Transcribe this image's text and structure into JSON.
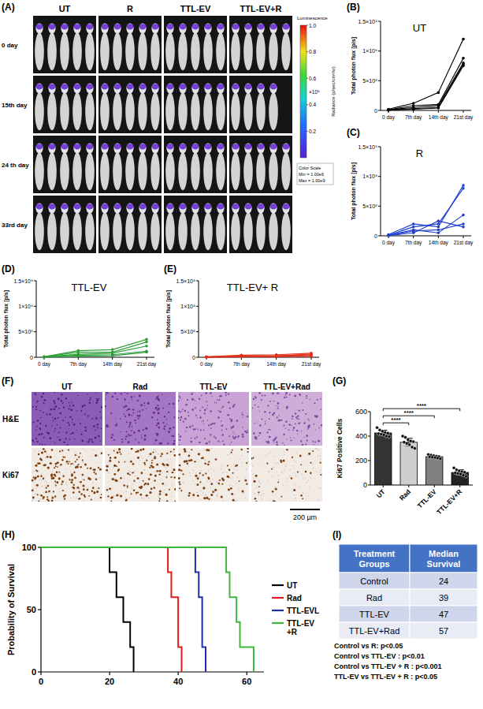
{
  "imaging": {
    "label": "(A)",
    "columns": [
      "UT",
      "R",
      "TTL-EV",
      "TTL-EV+R"
    ],
    "rows": [
      "0 day",
      "15th day",
      "24 th day",
      "33rd day"
    ],
    "mouse_counts": [
      [
        5,
        5,
        5,
        5
      ],
      [
        5,
        5,
        5,
        4
      ],
      [
        5,
        5,
        5,
        5
      ],
      [
        5,
        5,
        5,
        5
      ]
    ],
    "colorbar": {
      "title": "Luminescence",
      "range": [
        0,
        1
      ],
      "ticks": [
        0.2,
        0.4,
        0.6,
        0.8,
        {
          "value": 1,
          "label": "1.0"
        }
      ],
      "exponent": "×10⁹",
      "label": "Radiance (p/sec/cm²/sr)",
      "note": [
        "Color Scale",
        "Min = 1.00e6",
        "Max = 1.00e9"
      ]
    }
  },
  "histology": {
    "label": "(F)",
    "columns": [
      "UT",
      "Rad",
      "TTL-EV",
      "TTL-EV+Rad"
    ],
    "rows": [
      "H&E",
      "Ki67"
    ],
    "scale_bar": "200 µm"
  },
  "chart_data": [
    {
      "type": "line",
      "label": "(B)",
      "title": "UT",
      "y_label": "Total photon flux [p/s]",
      "categories": [
        "0 day",
        "7th day",
        "14th day",
        "21st day"
      ],
      "ylim": [
        0,
        1500000000
      ],
      "yticks": [
        0,
        {
          "value": 500000000,
          "label": "5×10⁸"
        },
        {
          "value": 1000000000,
          "label": "1×10⁹"
        },
        {
          "value": 1500000000,
          "label": "1.5×10⁹"
        }
      ],
      "marker": "circle",
      "series": [
        {
          "color": "#000000",
          "values": [
            20000000,
            120000000,
            300000000,
            1200000000
          ]
        },
        {
          "color": "#000000",
          "values": [
            10000000,
            80000000,
            100000000,
            880000000
          ]
        },
        {
          "color": "#000000",
          "values": [
            10000000,
            50000000,
            80000000,
            800000000
          ]
        },
        {
          "color": "#000000",
          "values": [
            5000000,
            30000000,
            50000000,
            780000000
          ]
        },
        {
          "color": "#000000",
          "values": [
            5000000,
            20000000,
            40000000,
            750000000
          ]
        }
      ]
    },
    {
      "type": "line",
      "label": "(C)",
      "title": "R",
      "y_label": "Total photon flux [p/s]",
      "categories": [
        "0 day",
        "7th day",
        "14th day",
        "21st day"
      ],
      "ylim": [
        0,
        1500000000
      ],
      "yticks": [
        0,
        {
          "value": 500000000,
          "label": "5×10⁸"
        },
        {
          "value": 1000000000,
          "label": "1×10⁹"
        },
        {
          "value": 1500000000,
          "label": "1.5×10⁹"
        }
      ],
      "marker": "circle",
      "series": [
        {
          "color": "#1f3fd1",
          "values": [
            20000000,
            200000000,
            150000000,
            850000000
          ]
        },
        {
          "color": "#1f3fd1",
          "values": [
            10000000,
            150000000,
            200000000,
            800000000
          ]
        },
        {
          "color": "#1f3fd1",
          "values": [
            10000000,
            100000000,
            50000000,
            350000000
          ]
        },
        {
          "color": "#1f3fd1",
          "values": [
            5000000,
            80000000,
            100000000,
            200000000
          ]
        },
        {
          "color": "#1f3fd1",
          "values": [
            5000000,
            50000000,
            250000000,
            150000000
          ]
        }
      ]
    },
    {
      "type": "line",
      "label": "(D)",
      "title": "TTL-EV",
      "y_label": "Total photon flux [p/s]",
      "categories": [
        "0 day",
        "7th day",
        "14th day",
        "21st day"
      ],
      "ylim": [
        0,
        1500000000
      ],
      "yticks": [
        0,
        {
          "value": 500000000,
          "label": "5×10⁸"
        },
        {
          "value": 1000000000,
          "label": "1×10⁹"
        },
        {
          "value": 1500000000,
          "label": "1.5×10⁹"
        }
      ],
      "marker": "circle",
      "series": [
        {
          "color": "#2e9e3a",
          "values": [
            10000000,
            130000000,
            150000000,
            350000000
          ]
        },
        {
          "color": "#2e9e3a",
          "values": [
            10000000,
            100000000,
            100000000,
            300000000
          ]
        },
        {
          "color": "#2e9e3a",
          "values": [
            5000000,
            60000000,
            80000000,
            220000000
          ]
        },
        {
          "color": "#2e9e3a",
          "values": [
            5000000,
            40000000,
            50000000,
            120000000
          ]
        },
        {
          "color": "#2e9e3a",
          "values": [
            3000000,
            20000000,
            30000000,
            100000000
          ]
        }
      ]
    },
    {
      "type": "line",
      "label": "(E)",
      "title": "TTL-EV+ R",
      "y_label": "Total photon flux [p/s]",
      "categories": [
        "0 day",
        "7th day",
        "14th day",
        "21st day"
      ],
      "ylim": [
        0,
        1500000000
      ],
      "yticks": [
        0,
        {
          "value": 500000000,
          "label": "5×10⁸"
        },
        {
          "value": 1000000000,
          "label": "1×10⁹"
        },
        {
          "value": 1500000000,
          "label": "1.5×10⁹"
        }
      ],
      "marker": "circle",
      "series": [
        {
          "color": "#e0301e",
          "values": [
            10000000,
            40000000,
            50000000,
            80000000
          ]
        },
        {
          "color": "#e0301e",
          "values": [
            5000000,
            30000000,
            30000000,
            60000000
          ]
        },
        {
          "color": "#e0301e",
          "values": [
            5000000,
            20000000,
            20000000,
            50000000
          ]
        },
        {
          "color": "#e0301e",
          "values": [
            3000000,
            10000000,
            20000000,
            30000000
          ]
        },
        {
          "color": "#e0301e",
          "values": [
            3000000,
            10000000,
            10000000,
            20000000
          ]
        }
      ]
    },
    {
      "type": "bar",
      "label": "(G)",
      "y_label": "Ki67 Positive Cells",
      "categories": [
        "UT",
        "Rad",
        "TTL-EV",
        "TTL-EV+R"
      ],
      "values": [
        426,
        350,
        232,
        103
      ],
      "errors": [
        22,
        32,
        10,
        22
      ],
      "points": [
        [
          470,
          450,
          440,
          430,
          425,
          420,
          415,
          410,
          400,
          395
        ],
        [
          400,
          390,
          370,
          360,
          355,
          350,
          340,
          330,
          310,
          300
        ],
        [
          250,
          245,
          240,
          235,
          232,
          230,
          228,
          225,
          220,
          215
        ],
        [
          140,
          125,
          115,
          110,
          105,
          100,
          95,
          90,
          80,
          70
        ]
      ],
      "colors": [
        "#333333",
        "#cfcfcf",
        "#808080",
        "#222222"
      ],
      "ylim": [
        0,
        600
      ],
      "yticks": [
        0,
        200,
        400,
        600
      ],
      "significance": [
        {
          "groups": [
            "UT",
            "Rad"
          ],
          "text": "****"
        },
        {
          "groups": [
            "UT",
            "TTL-EV"
          ],
          "text": "****"
        },
        {
          "groups": [
            "UT",
            "TTL-EV+R"
          ],
          "text": "****"
        }
      ]
    },
    {
      "type": "line",
      "line_style": "step",
      "label": "(H)",
      "y_label": "Probability of Survival",
      "xlim": [
        0,
        65
      ],
      "xticks": [
        0,
        20,
        40,
        60
      ],
      "ylim": [
        0,
        100
      ],
      "yticks": [
        0,
        50,
        100
      ],
      "legend": "right",
      "series": [
        {
          "name": "UT",
          "color": "#000000",
          "x": [
            0,
            20,
            22,
            24,
            26,
            27
          ],
          "values": [
            100,
            80,
            60,
            40,
            20,
            0
          ]
        },
        {
          "name": "Rad",
          "color": "#e41a1c",
          "x": [
            0,
            37,
            38,
            40,
            41
          ],
          "values": [
            100,
            80,
            60,
            20,
            0
          ]
        },
        {
          "name": "TTL-EVL",
          "color": "#1a2fa8",
          "x": [
            0,
            45,
            46,
            47,
            48
          ],
          "values": [
            100,
            80,
            60,
            20,
            0
          ]
        },
        {
          "name": "TTL-EV\n+R",
          "color": "#3cb83c",
          "x": [
            0,
            54,
            55,
            57,
            58,
            62
          ],
          "values": [
            100,
            80,
            60,
            40,
            20,
            0
          ]
        }
      ]
    }
  ],
  "table": {
    "label": "(I)",
    "header": [
      "Treatment Groups",
      "Median Survival"
    ],
    "rows": [
      [
        "Control",
        24
      ],
      [
        "Rad",
        39
      ],
      [
        "TTL-EV",
        47
      ],
      [
        "TTL-EV+Rad",
        57
      ]
    ]
  },
  "stats": [
    "Control vs R: p<0.05",
    "Control vs TTL-EV : p<0.01",
    "Control vs TTL-EV + R : p<0.001",
    "TTL-EV vs TTL-EV + R : p<0.05"
  ]
}
